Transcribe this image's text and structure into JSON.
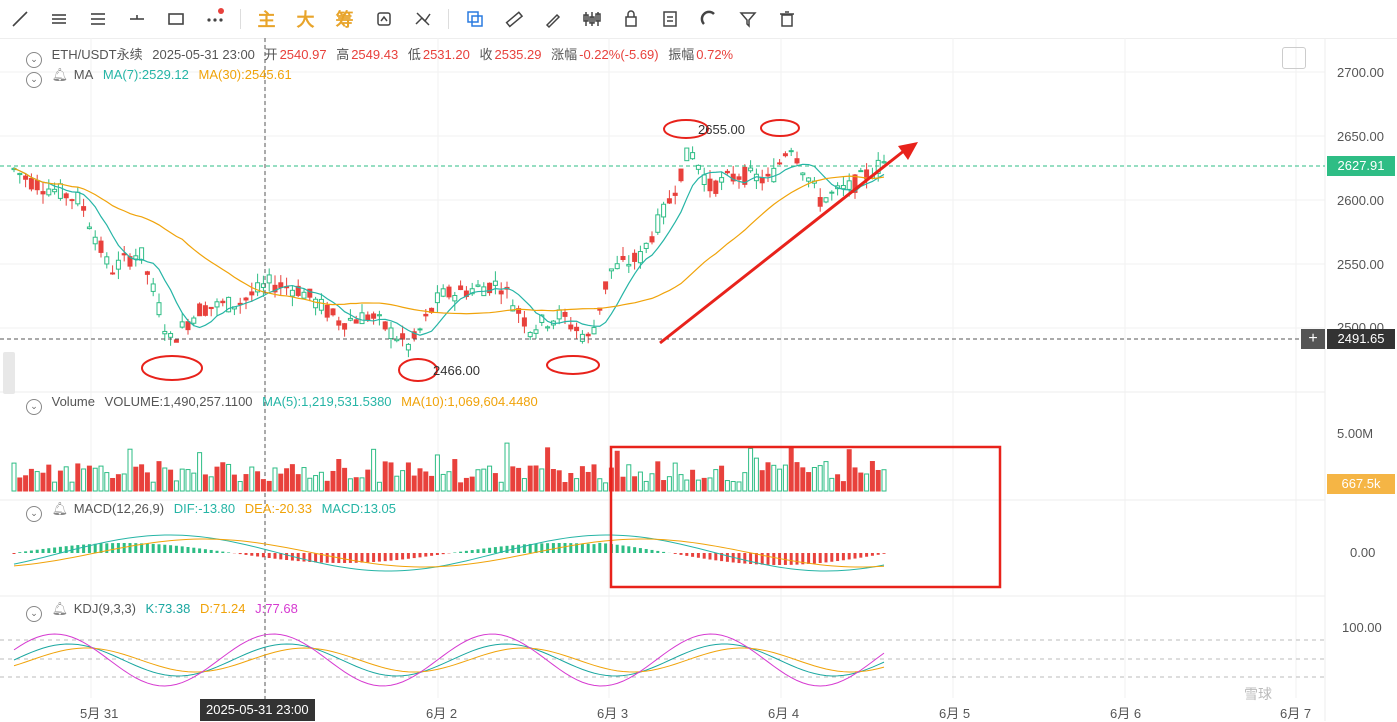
{
  "toolbar": {
    "tools": [
      "line-tool-icon",
      "horizontal-lines-icon",
      "parallel-lines-icon",
      "ray-icon",
      "rectangle-icon",
      "more-icon"
    ],
    "text_buttons": [
      "主",
      "大",
      "筹"
    ],
    "tools2": [
      "replay-icon",
      "indicator-off-icon",
      "copy-icon",
      "ruler-icon",
      "brush-icon",
      "compare-icon",
      "lock-icon",
      "note-icon",
      "magnet-icon",
      "filter-icon",
      "trash-icon"
    ]
  },
  "header": {
    "symbol": "ETH/USDT永续",
    "time": "2025-05-31 23:00",
    "open_label": "开",
    "open": "2540.97",
    "high_label": "高",
    "high": "2549.43",
    "low_label": "低",
    "low": "2531.20",
    "close_label": "收",
    "close": "2535.29",
    "change_label": "涨幅",
    "change": "-0.22%(-5.69)",
    "amp_label": "振幅",
    "amp": "0.72%"
  },
  "ma": {
    "name": "MA",
    "ma7": "MA(7):2529.12",
    "ma30": "MA(30):2545.61"
  },
  "volume": {
    "name": "Volume",
    "vol": "VOLUME:1,490,257.1100",
    "ma5": "MA(5):1,219,531.5380",
    "ma10": "MA(10):1,069,604.4480",
    "axis": "5.00M",
    "tag": "667.5k"
  },
  "macd": {
    "name": "MACD(12,26,9)",
    "dif": "DIF:-13.80",
    "dea": "DEA:-20.33",
    "val": "MACD:13.05",
    "axis": "0.00"
  },
  "kdj": {
    "name": "KDJ(9,3,3)",
    "k": "K:73.38",
    "d": "D:71.24",
    "j": "J:77.68",
    "axis": "100.00"
  },
  "price_axis": [
    "2700.00",
    "2650.00",
    "2600.00",
    "2550.00",
    "2500.00"
  ],
  "last_price": "2627.91",
  "crosshair_price": "2491.65",
  "annotations": {
    "high": "2655.00",
    "low": "2466.00"
  },
  "x_axis": [
    "5月 31",
    "6月 2",
    "6月 3",
    "6月 4",
    "6月 5",
    "6月 6",
    "6月 7"
  ],
  "crosshair_time": "2025-05-31 23:00",
  "watermark": "雪球",
  "colors": {
    "up": "#2ebd85",
    "down": "#e8413c",
    "ma7": "#26b5a6",
    "ma30": "#f0a30a",
    "k": "#1aa7a0",
    "d": "#f0a30a",
    "j": "#d63ad1"
  }
}
